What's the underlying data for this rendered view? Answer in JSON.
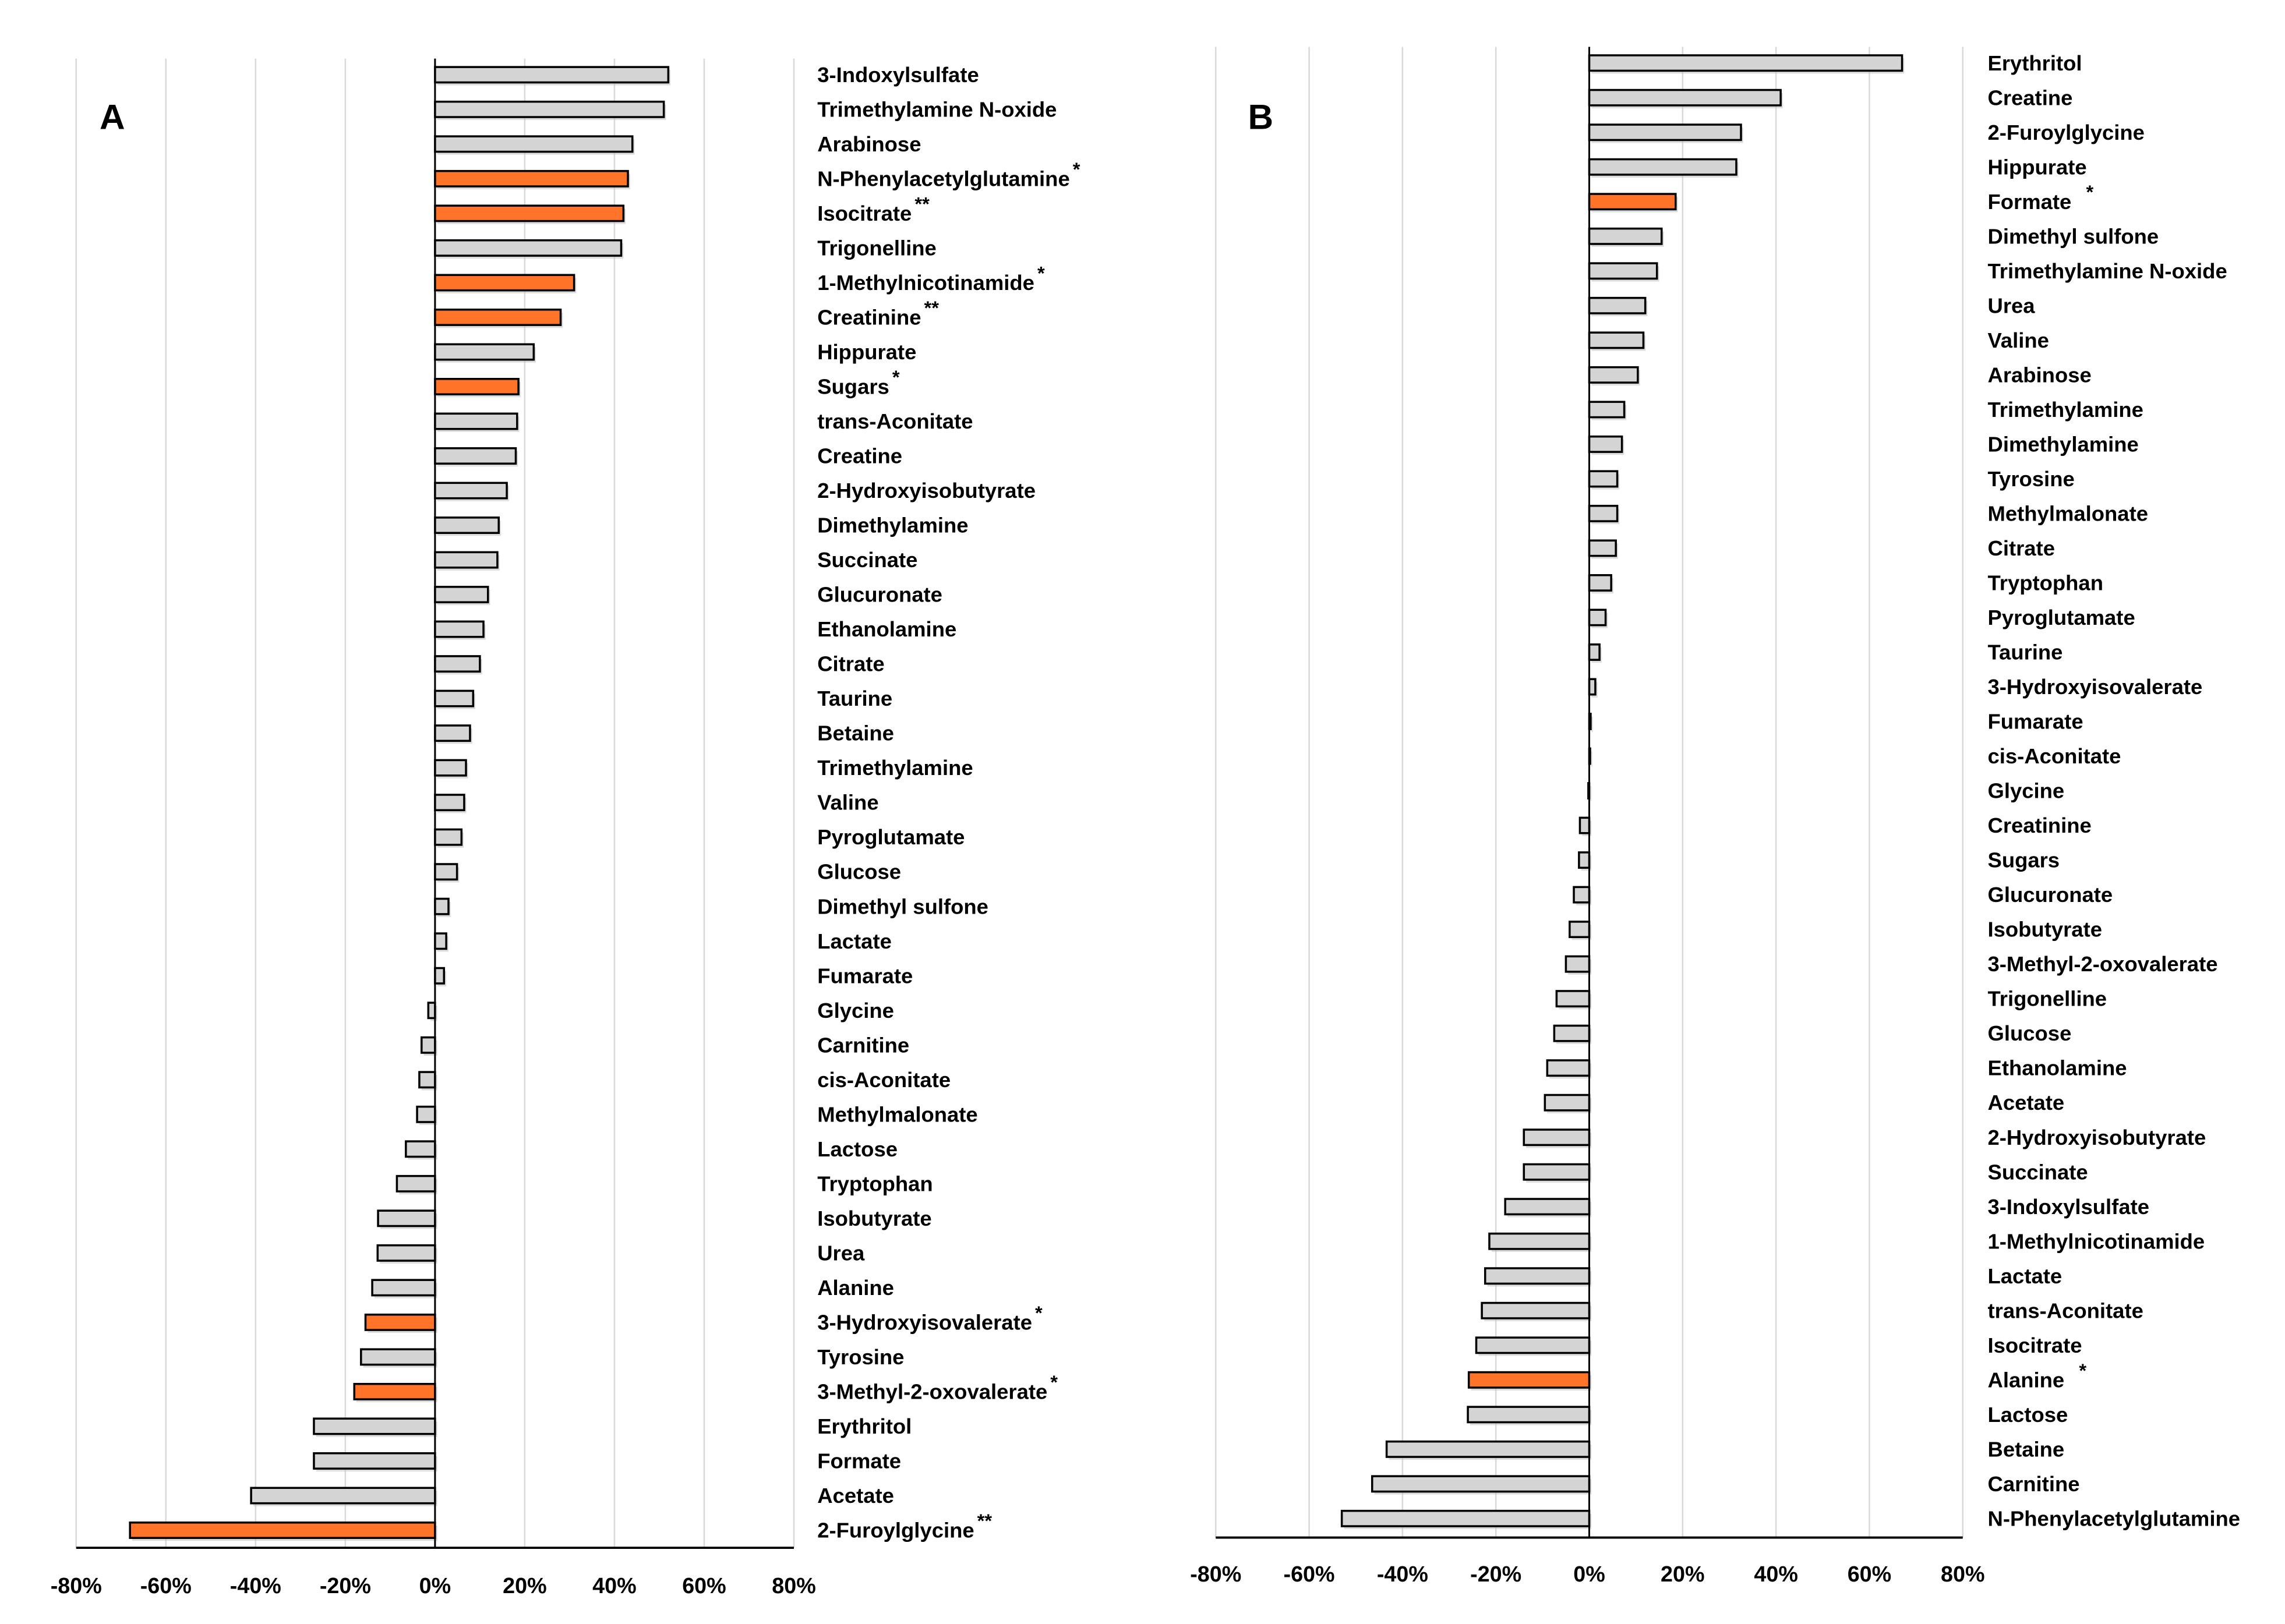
{
  "colors": {
    "significant": "#FF7428",
    "normal": "#D4D4D4",
    "outline": "#000000",
    "grid": "#D9D9D9"
  },
  "chart_data": [
    {
      "type": "bar",
      "orientation": "horizontal",
      "panel_label": "A",
      "xlim": [
        -80,
        80
      ],
      "xticks": [
        "-80%",
        "-60%",
        "-40%",
        "-20%",
        "0%",
        "20%",
        "40%",
        "60%",
        "80%"
      ],
      "grid": true,
      "categories": [
        {
          "name": "3-Indoxylsulfate",
          "value": 52,
          "stars": ""
        },
        {
          "name": "Trimethylamine N-oxide",
          "value": 51,
          "stars": ""
        },
        {
          "name": "Arabinose",
          "value": 44,
          "stars": ""
        },
        {
          "name": "N-Phenylacetylglutamine",
          "value": 43,
          "stars": "*"
        },
        {
          "name": "Isocitrate",
          "value": 42,
          "stars": "**"
        },
        {
          "name": "Trigonelline",
          "value": 41.5,
          "stars": ""
        },
        {
          "name": "1-Methylnicotinamide",
          "value": 31,
          "stars": "*"
        },
        {
          "name": "Creatinine",
          "value": 28,
          "stars": "**"
        },
        {
          "name": "Hippurate",
          "value": 22,
          "stars": ""
        },
        {
          "name": "Sugars",
          "value": 18.6,
          "stars": "*"
        },
        {
          "name": "trans-Aconitate",
          "value": 18.3,
          "stars": ""
        },
        {
          "name": "Creatine",
          "value": 18,
          "stars": ""
        },
        {
          "name": "2-Hydroxyisobutyrate",
          "value": 16,
          "stars": ""
        },
        {
          "name": "Dimethylamine",
          "value": 14.2,
          "stars": ""
        },
        {
          "name": "Succinate",
          "value": 13.9,
          "stars": ""
        },
        {
          "name": "Glucuronate",
          "value": 11.8,
          "stars": ""
        },
        {
          "name": "Ethanolamine",
          "value": 10.8,
          "stars": ""
        },
        {
          "name": "Citrate",
          "value": 10,
          "stars": ""
        },
        {
          "name": "Taurine",
          "value": 8.5,
          "stars": ""
        },
        {
          "name": "Betaine",
          "value": 7.8,
          "stars": ""
        },
        {
          "name": "Trimethylamine",
          "value": 6.9,
          "stars": ""
        },
        {
          "name": "Valine",
          "value": 6.5,
          "stars": ""
        },
        {
          "name": "Pyroglutamate",
          "value": 5.9,
          "stars": ""
        },
        {
          "name": "Glucose",
          "value": 4.9,
          "stars": ""
        },
        {
          "name": "Dimethyl sulfone",
          "value": 3,
          "stars": ""
        },
        {
          "name": "Lactate",
          "value": 2.5,
          "stars": ""
        },
        {
          "name": "Fumarate",
          "value": 2,
          "stars": ""
        },
        {
          "name": "Glycine",
          "value": -1.5,
          "stars": ""
        },
        {
          "name": "Carnitine",
          "value": -3,
          "stars": ""
        },
        {
          "name": "cis-Aconitate",
          "value": -3.5,
          "stars": ""
        },
        {
          "name": "Methylmalonate",
          "value": -4,
          "stars": ""
        },
        {
          "name": "Lactose",
          "value": -6.5,
          "stars": ""
        },
        {
          "name": "Tryptophan",
          "value": -8.5,
          "stars": ""
        },
        {
          "name": "Isobutyrate",
          "value": -12.7,
          "stars": ""
        },
        {
          "name": "Urea",
          "value": -12.8,
          "stars": ""
        },
        {
          "name": "Alanine",
          "value": -14,
          "stars": ""
        },
        {
          "name": "3-Hydroxyisovalerate",
          "value": -15.5,
          "stars": "*"
        },
        {
          "name": "Tyrosine",
          "value": -16.5,
          "stars": ""
        },
        {
          "name": "3-Methyl-2-oxovalerate",
          "value": -18,
          "stars": "*"
        },
        {
          "name": "Erythritol",
          "value": -27,
          "stars": ""
        },
        {
          "name": "Formate",
          "value": -27,
          "stars": ""
        },
        {
          "name": "Acetate",
          "value": -41,
          "stars": ""
        },
        {
          "name": "2-Furoylglycine",
          "value": -68,
          "stars": "**"
        }
      ]
    },
    {
      "type": "bar",
      "orientation": "horizontal",
      "panel_label": "B",
      "xlim": [
        -80,
        80
      ],
      "xticks": [
        "-80%",
        "-60%",
        "-40%",
        "-20%",
        "0%",
        "20%",
        "40%",
        "60%",
        "80%"
      ],
      "grid": true,
      "categories": [
        {
          "name": "Erythritol",
          "value": 67,
          "stars": ""
        },
        {
          "name": "Creatine",
          "value": 41,
          "stars": ""
        },
        {
          "name": "2-Furoylglycine",
          "value": 32.5,
          "stars": ""
        },
        {
          "name": "Hippurate",
          "value": 31.5,
          "stars": ""
        },
        {
          "name": "Formate",
          "value": 18.5,
          "stars": "*"
        },
        {
          "name": "Dimethyl sulfone",
          "value": 15.5,
          "stars": ""
        },
        {
          "name": "Trimethylamine N-oxide",
          "value": 14.5,
          "stars": ""
        },
        {
          "name": "Urea",
          "value": 12,
          "stars": ""
        },
        {
          "name": "Valine",
          "value": 11.6,
          "stars": ""
        },
        {
          "name": "Arabinose",
          "value": 10.4,
          "stars": ""
        },
        {
          "name": "Trimethylamine",
          "value": 7.5,
          "stars": ""
        },
        {
          "name": "Dimethylamine",
          "value": 7,
          "stars": ""
        },
        {
          "name": "Tyrosine",
          "value": 6,
          "stars": ""
        },
        {
          "name": "Methylmalonate",
          "value": 6,
          "stars": ""
        },
        {
          "name": "Citrate",
          "value": 5.7,
          "stars": ""
        },
        {
          "name": "Tryptophan",
          "value": 4.7,
          "stars": ""
        },
        {
          "name": "Pyroglutamate",
          "value": 3.5,
          "stars": ""
        },
        {
          "name": "Taurine",
          "value": 2.2,
          "stars": ""
        },
        {
          "name": "3-Hydroxyisovalerate",
          "value": 1.3,
          "stars": ""
        },
        {
          "name": "Fumarate",
          "value": 0.3,
          "stars": ""
        },
        {
          "name": "cis-Aconitate",
          "value": 0.1,
          "stars": ""
        },
        {
          "name": "Glycine",
          "value": -0.2,
          "stars": ""
        },
        {
          "name": "Creatinine",
          "value": -2,
          "stars": ""
        },
        {
          "name": "Sugars",
          "value": -2.2,
          "stars": ""
        },
        {
          "name": "Glucuronate",
          "value": -3.3,
          "stars": ""
        },
        {
          "name": "Isobutyrate",
          "value": -4.2,
          "stars": ""
        },
        {
          "name": "3-Methyl-2-oxovalerate",
          "value": -5,
          "stars": ""
        },
        {
          "name": "Trigonelline",
          "value": -7,
          "stars": ""
        },
        {
          "name": "Glucose",
          "value": -7.5,
          "stars": ""
        },
        {
          "name": "Ethanolamine",
          "value": -9,
          "stars": ""
        },
        {
          "name": "Acetate",
          "value": -9.5,
          "stars": ""
        },
        {
          "name": "2-Hydroxyisobutyrate",
          "value": -14,
          "stars": ""
        },
        {
          "name": "Succinate",
          "value": -14,
          "stars": ""
        },
        {
          "name": "3-Indoxylsulfate",
          "value": -18,
          "stars": ""
        },
        {
          "name": "1-Methylnicotinamide",
          "value": -21.4,
          "stars": ""
        },
        {
          "name": "Lactate",
          "value": -22.3,
          "stars": ""
        },
        {
          "name": "trans-Aconitate",
          "value": -23,
          "stars": ""
        },
        {
          "name": "Isocitrate",
          "value": -24.2,
          "stars": ""
        },
        {
          "name": "Alanine",
          "value": -25.8,
          "stars": "*"
        },
        {
          "name": "Lactose",
          "value": -26,
          "stars": ""
        },
        {
          "name": "Betaine",
          "value": -43.4,
          "stars": ""
        },
        {
          "name": "Carnitine",
          "value": -46.5,
          "stars": ""
        },
        {
          "name": "N-Phenylacetylglutamine",
          "value": -53,
          "stars": ""
        }
      ]
    }
  ]
}
